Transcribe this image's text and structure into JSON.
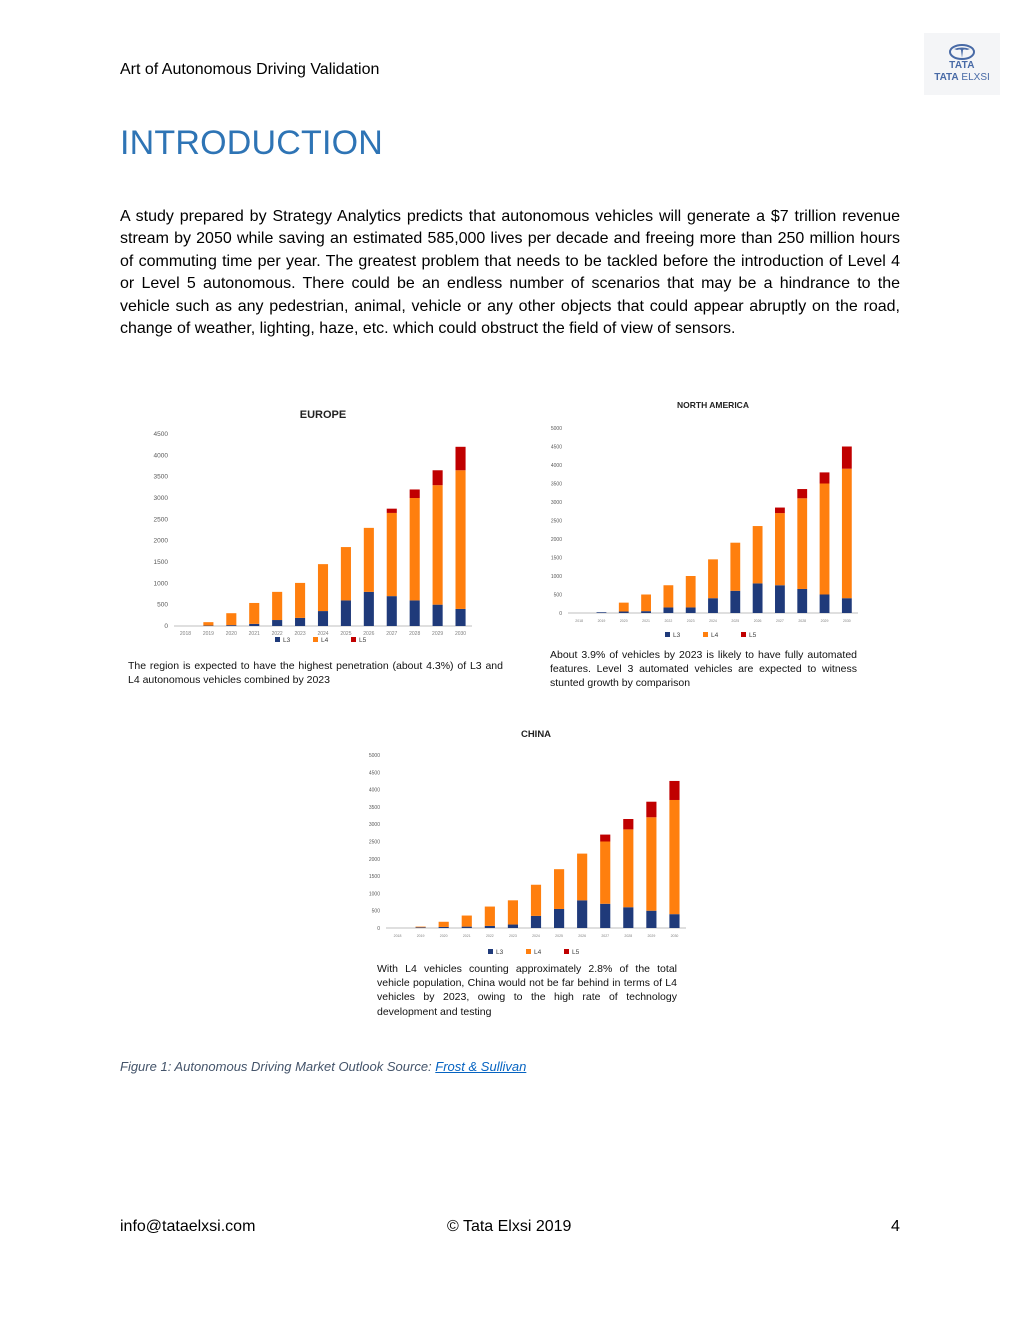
{
  "header": {
    "title": "Art of Autonomous Driving Validation",
    "logo_top": "TATA",
    "logo_brand": "TATA",
    "logo_product": "ELXSI"
  },
  "page_title": "INTRODUCTION",
  "intro_text": "A study prepared by Strategy Analytics predicts that autonomous vehicles will generate a $7 trillion revenue stream by 2050 while saving an estimated 585,000 lives per decade and freeing more than 250 million hours of commuting time per year. The greatest problem that needs to be tackled before the introduction of Level 4 or Level 5 autonomous. There could be an endless number of scenarios that may be a hindrance to the vehicle such as any pedestrian, animal, vehicle or any other objects that could appear abruptly on the road, change of weather, lighting, haze, etc. which could obstruct the field of view of sensors.",
  "colors": {
    "L3": "#1f3a7a",
    "L4": "#ff7f0e",
    "L5": "#c00000",
    "axis": "#bfbfbf",
    "heading": "#2e74b5"
  },
  "chart_data": [
    {
      "id": "europe",
      "type": "bar",
      "stacked": true,
      "title": "EUROPE",
      "categories": [
        "2018",
        "2019",
        "2020",
        "2021",
        "2022",
        "2023",
        "2024",
        "2025",
        "2026",
        "2027",
        "2028",
        "2029",
        "2030"
      ],
      "series": [
        {
          "name": "L3",
          "values": [
            0,
            10,
            20,
            50,
            140,
            190,
            350,
            600,
            800,
            700,
            600,
            500,
            400
          ]
        },
        {
          "name": "L4",
          "values": [
            0,
            80,
            280,
            490,
            660,
            820,
            1100,
            1250,
            1500,
            1950,
            2400,
            2800,
            3250
          ]
        },
        {
          "name": "L5",
          "values": [
            0,
            0,
            0,
            0,
            0,
            0,
            0,
            0,
            0,
            100,
            200,
            350,
            550
          ]
        }
      ],
      "ylim": [
        0,
        4500
      ],
      "yticks": [
        0,
        500,
        1000,
        1500,
        2000,
        2500,
        3000,
        3500,
        4000,
        4500
      ],
      "legend": "bottom",
      "caption": "The region is expected to have the highest penetration (about 4.3%) of L3 and L4 autonomous vehicles combined by 2023"
    },
    {
      "id": "north-america",
      "type": "bar",
      "stacked": true,
      "title": "NORTH AMERICA",
      "categories": [
        "2018",
        "2019",
        "2020",
        "2021",
        "2022",
        "2023",
        "2024",
        "2025",
        "2026",
        "2027",
        "2028",
        "2029",
        "2030"
      ],
      "series": [
        {
          "name": "L3",
          "values": [
            0,
            20,
            40,
            50,
            150,
            150,
            400,
            600,
            800,
            750,
            650,
            500,
            400
          ]
        },
        {
          "name": "L4",
          "values": [
            0,
            0,
            240,
            450,
            600,
            850,
            1050,
            1300,
            1550,
            1950,
            2450,
            3000,
            3500
          ]
        },
        {
          "name": "L5",
          "values": [
            0,
            0,
            0,
            0,
            0,
            0,
            0,
            0,
            0,
            150,
            250,
            300,
            600
          ]
        }
      ],
      "ylim": [
        0,
        5000
      ],
      "yticks": [
        0,
        500,
        1000,
        1500,
        2000,
        2500,
        3000,
        3500,
        4000,
        4500,
        5000
      ],
      "legend": "bottom",
      "caption": "About 3.9% of vehicles by 2023 is likely to have fully automated features. Level 3 automated vehicles are expected to witness stunted growth by comparison"
    },
    {
      "id": "china",
      "type": "bar",
      "stacked": true,
      "title": "CHINA",
      "categories": [
        "2018",
        "2019",
        "2020",
        "2021",
        "2022",
        "2023",
        "2024",
        "2025",
        "2026",
        "2027",
        "2028",
        "2029",
        "2030"
      ],
      "series": [
        {
          "name": "L3",
          "values": [
            0,
            20,
            30,
            40,
            60,
            100,
            350,
            550,
            800,
            700,
            600,
            500,
            400
          ]
        },
        {
          "name": "L4",
          "values": [
            0,
            20,
            150,
            320,
            560,
            700,
            900,
            1150,
            1350,
            1800,
            2250,
            2700,
            3300
          ]
        },
        {
          "name": "L5",
          "values": [
            0,
            0,
            0,
            0,
            0,
            0,
            0,
            0,
            0,
            200,
            300,
            450,
            550
          ]
        }
      ],
      "ylim": [
        0,
        5000
      ],
      "yticks": [
        0,
        500,
        1000,
        1500,
        2000,
        2500,
        3000,
        3500,
        4000,
        4500,
        5000
      ],
      "legend": "bottom",
      "caption": "With L4 vehicles counting approximately 2.8% of the total vehicle population, China would not be far behind in terms of L4 vehicles by 2023, owing to the high rate of technology development and testing"
    }
  ],
  "figure_caption": {
    "prefix": "Figure 1: Autonomous Driving Market Outlook Source: ",
    "link": "Frost & Sullivan"
  },
  "footer": {
    "email": "info@tataelxsi.com",
    "copyright": "© Tata Elxsi 2019",
    "page_number": "4"
  }
}
